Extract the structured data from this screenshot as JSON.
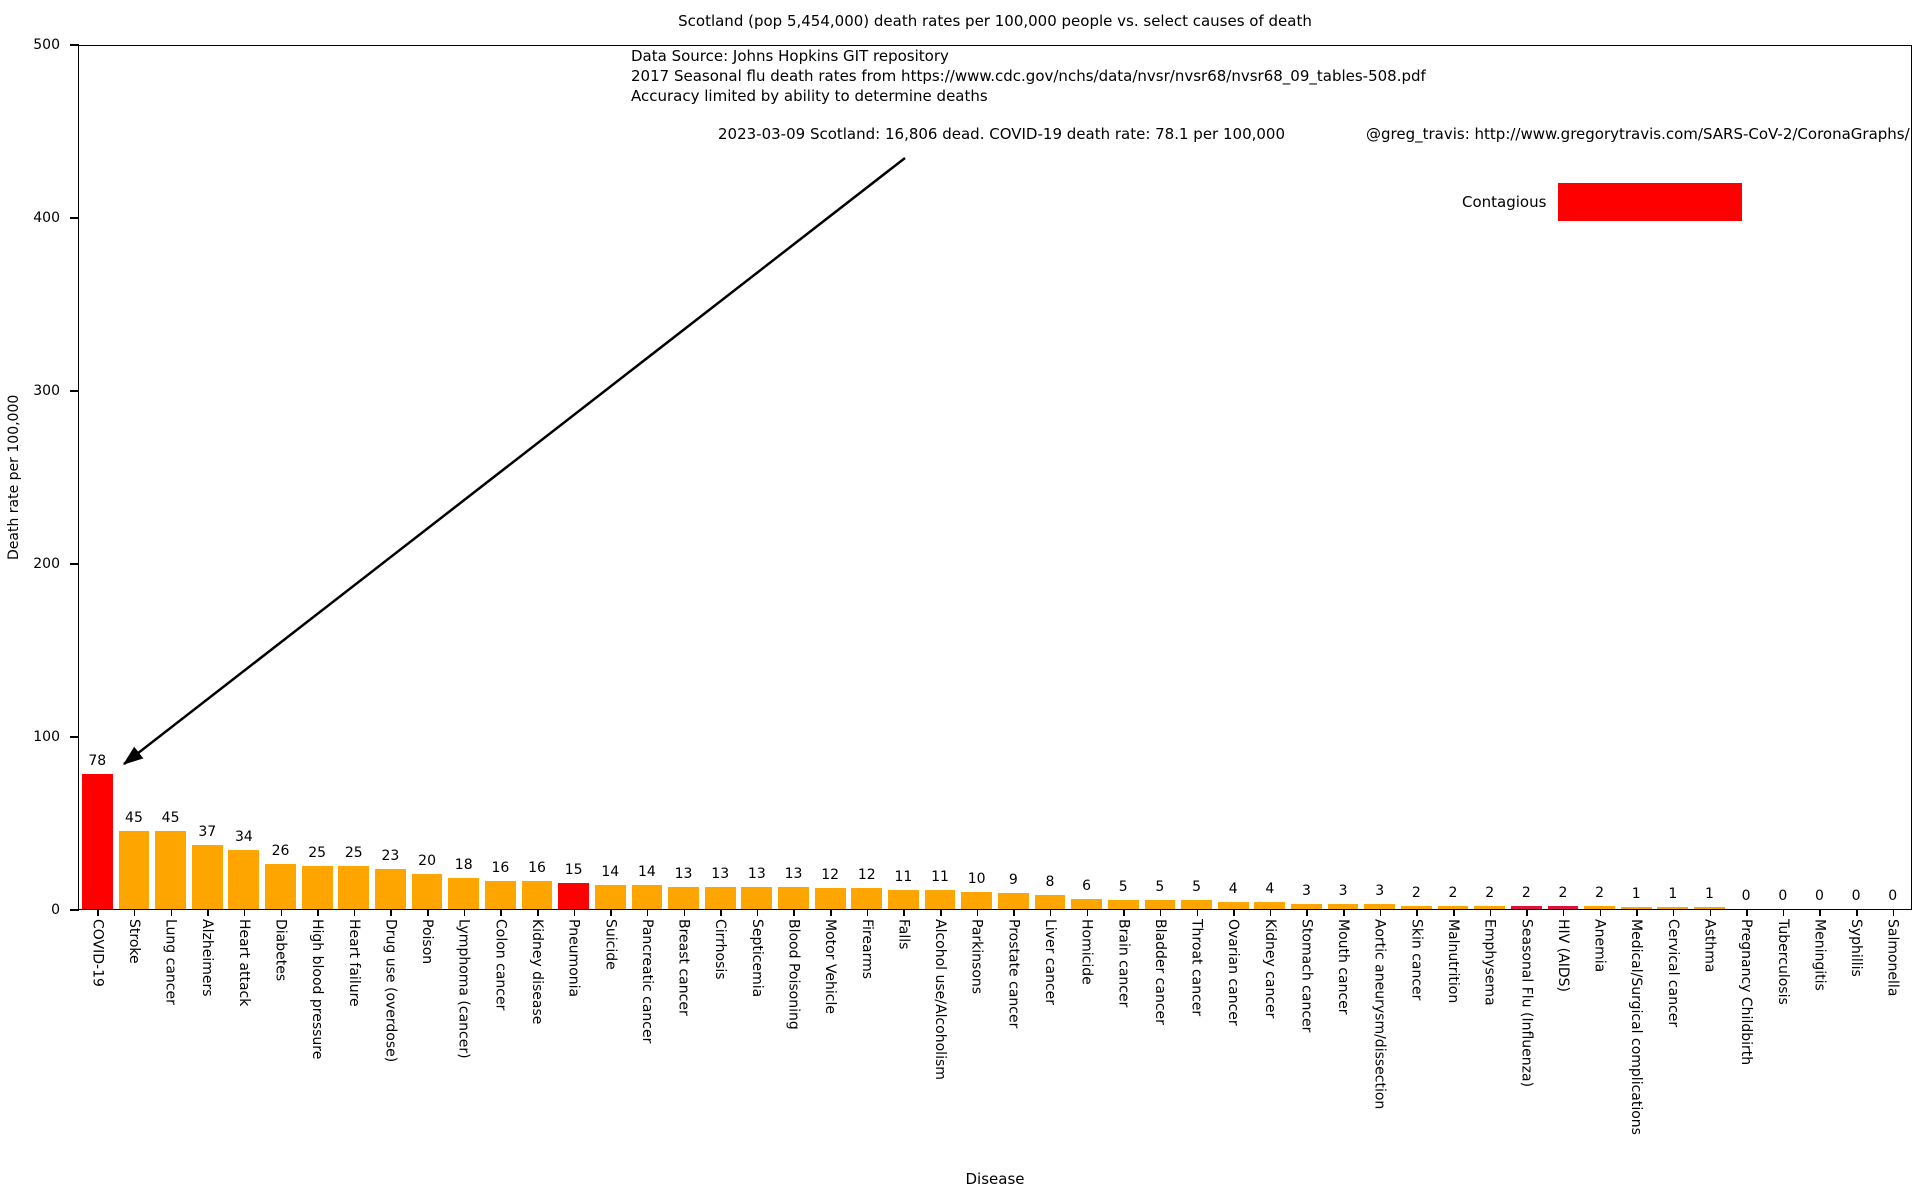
{
  "title": "Scotland (pop 5,454,000) death rates per 100,000 people vs. select causes of death",
  "annotations": {
    "source_line1": "Data Source: Johns Hopkins GIT repository",
    "source_line2": "2017 Seasonal flu death rates from https://www.cdc.gov/nchs/data/nvsr/nvsr68/nvsr68_09_tables-508.pdf",
    "source_line3": "Accuracy limited by ability to determine deaths",
    "covid_note": "2023-03-09 Scotland: 16,806 dead.  COVID-19 death rate: 78.1 per 100,000",
    "credit": "@greg_travis: http://www.gregorytravis.com/SARS-CoV-2/CoronaGraphs/"
  },
  "legend": {
    "label": "Contagious",
    "color": "#ff0000"
  },
  "chart_data": {
    "type": "bar",
    "title": "Scotland (pop 5,454,000) death rates per 100,000 people vs. select causes of death",
    "xlabel": "Disease",
    "ylabel": "Death rate per 100,000",
    "ylim": [
      0,
      500
    ],
    "yticks": [
      0,
      100,
      200,
      300,
      400,
      500
    ],
    "grid": false,
    "legend_position": "upper right",
    "categories": [
      "COVID-19",
      "Stroke",
      "Lung cancer",
      "Alzheimers",
      "Heart attack",
      "Diabetes",
      "High blood pressure",
      "Heart failure",
      "Drug use (overdose)",
      "Poison",
      "Lymphoma (cancer)",
      "Colon cancer",
      "Kidney disease",
      "Pneumonia",
      "Suicide",
      "Pancreatic cancer",
      "Breast cancer",
      "Cirrhosis",
      "Septicemia",
      "Blood Poisoning",
      "Motor Vehicle",
      "Firearms",
      "Falls",
      "Alcohol use/Alcoholism",
      "Parkinsons",
      "Prostate cancer",
      "Liver cancer",
      "Homicide",
      "Brain cancer",
      "Bladder cancer",
      "Throat cancer",
      "Ovarian cancer",
      "Kidney cancer",
      "Stomach cancer",
      "Mouth cancer",
      "Aortic aneurysm/dissection",
      "Skin cancer",
      "Malnutrition",
      "Emphysema",
      "Seasonal Flu (Influenza)",
      "HIV (AIDS)",
      "Anemia",
      "Medical/Surgical complications",
      "Cervical cancer",
      "Asthma",
      "Pregnancy Childbirth",
      "Tuberculosis",
      "Meningitis",
      "Syphillis",
      "Salmonella"
    ],
    "values": [
      78,
      45,
      45,
      37,
      34,
      26,
      25,
      25,
      23,
      20,
      18,
      16,
      16,
      15,
      14,
      14,
      13,
      13,
      13,
      13,
      12,
      12,
      11,
      11,
      10,
      9,
      8,
      6,
      5,
      5,
      5,
      4,
      4,
      3,
      3,
      3,
      2,
      2,
      2,
      2,
      2,
      2,
      1,
      1,
      1,
      0,
      0,
      0,
      0,
      0
    ],
    "colors": [
      "#ff0000",
      "#ffa500",
      "#ffa500",
      "#ffa500",
      "#ffa500",
      "#ffa500",
      "#ffa500",
      "#ffa500",
      "#ffa500",
      "#ffa500",
      "#ffa500",
      "#ffa500",
      "#ffa500",
      "#ff0000",
      "#ffa500",
      "#ffa500",
      "#ffa500",
      "#ffa500",
      "#ffa500",
      "#ffa500",
      "#ffa500",
      "#ffa500",
      "#ffa500",
      "#ffa500",
      "#ffa500",
      "#ffa500",
      "#ffa500",
      "#ffa500",
      "#ffa500",
      "#ffa500",
      "#ffa500",
      "#ffa500",
      "#ffa500",
      "#ffa500",
      "#ffa500",
      "#ffa500",
      "#ffa500",
      "#ffa500",
      "#ffa500",
      "#dc143c",
      "#dc143c",
      "#ffa500",
      "#ffa500",
      "#ffa500",
      "#ffa500",
      "#ffa500",
      "#ffa500",
      "#ffa500",
      "#ffa500",
      "#ffa500"
    ]
  }
}
